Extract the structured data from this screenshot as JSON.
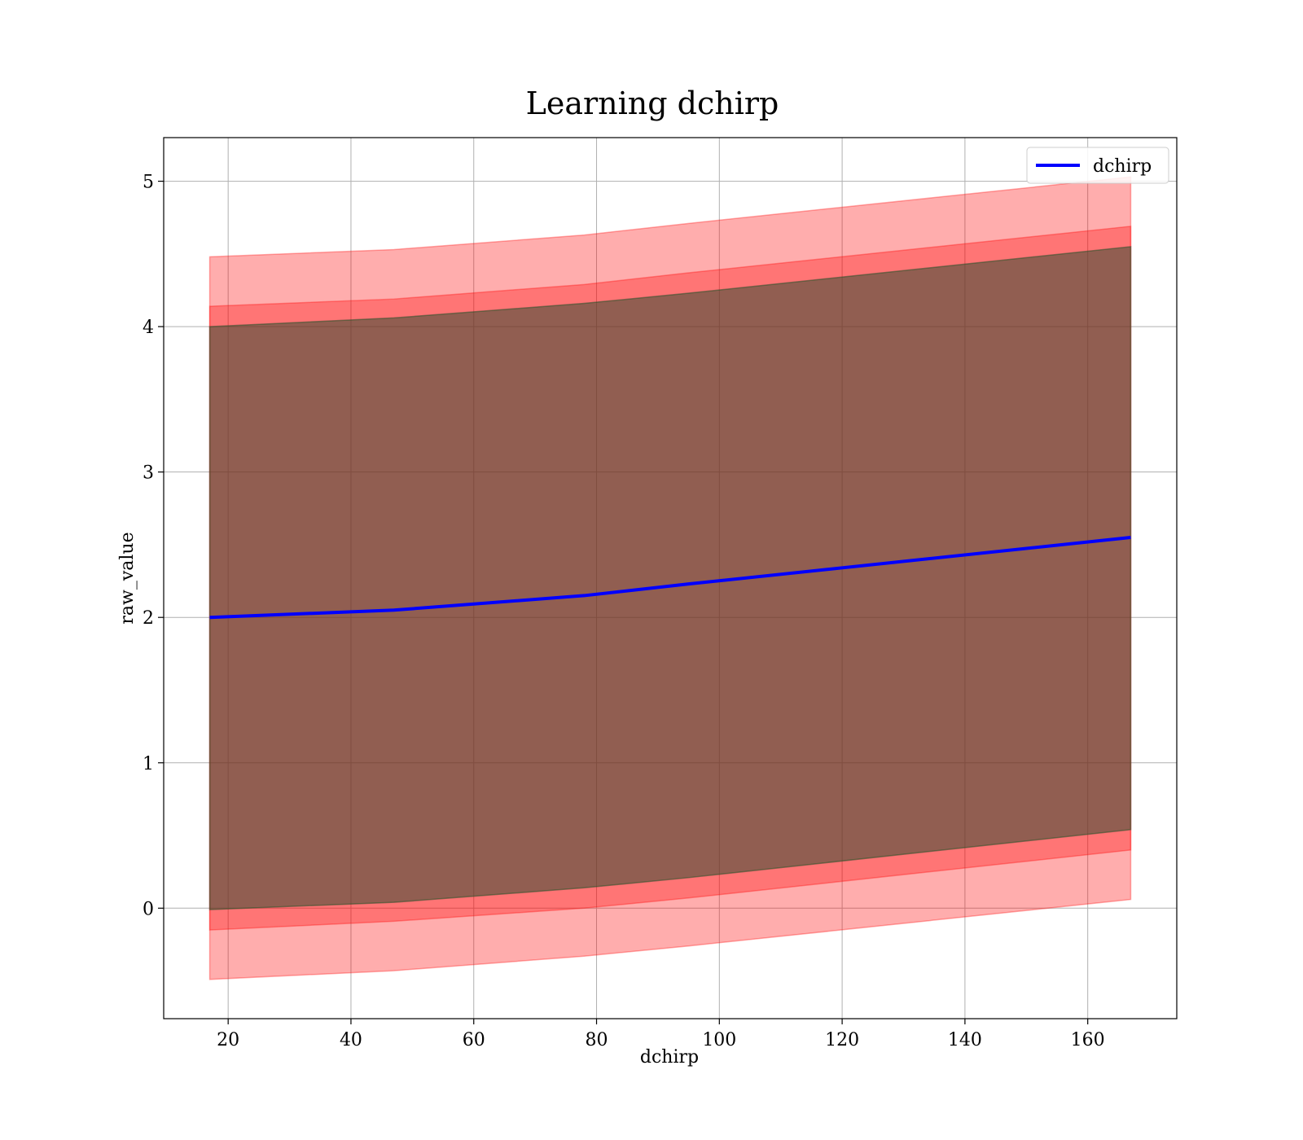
{
  "chart_data": {
    "type": "line",
    "title": "Learning dchirp",
    "xlabel": "dchirp",
    "ylabel": "raw_value",
    "xlim": [
      9.5,
      174.5
    ],
    "ylim": [
      -0.76,
      5.3
    ],
    "xticks": [
      20,
      40,
      60,
      80,
      100,
      120,
      140,
      160
    ],
    "yticks": [
      0,
      1,
      2,
      3,
      4,
      5
    ],
    "xtick_labels": [
      "20",
      "40",
      "60",
      "80",
      "100",
      "120",
      "140",
      "160"
    ],
    "ytick_labels": [
      "0",
      "1",
      "2",
      "3",
      "4",
      "5"
    ],
    "grid": true,
    "legend_position": "top-right",
    "x": [
      17,
      47,
      78,
      95,
      167
    ],
    "series": [
      {
        "name": "dchirp",
        "color": "#0000ff",
        "values": [
          2.0,
          2.05,
          2.15,
          2.23,
          2.55
        ]
      }
    ],
    "bands": [
      {
        "color": "#ff0000",
        "opacity": 0.32,
        "lower": [
          -0.49,
          -0.43,
          -0.33,
          -0.26,
          0.06
        ],
        "upper": [
          4.48,
          4.53,
          4.63,
          4.71,
          5.03
        ]
      },
      {
        "color": "#ff0000",
        "opacity": 0.32,
        "lower": [
          -0.15,
          -0.09,
          0.0,
          0.07,
          0.4
        ],
        "upper": [
          4.14,
          4.19,
          4.29,
          4.37,
          4.69
        ]
      },
      {
        "color": "#800080",
        "opacity": 0.32,
        "lower": [
          -0.01,
          0.04,
          0.14,
          0.21,
          0.54
        ],
        "upper": [
          4.0,
          4.06,
          4.16,
          4.23,
          4.55
        ]
      },
      {
        "color": "#008000",
        "opacity": 0.32,
        "lower": [
          -0.01,
          0.04,
          0.14,
          0.21,
          0.54
        ],
        "upper": [
          4.0,
          4.06,
          4.16,
          4.23,
          4.55
        ]
      }
    ]
  }
}
